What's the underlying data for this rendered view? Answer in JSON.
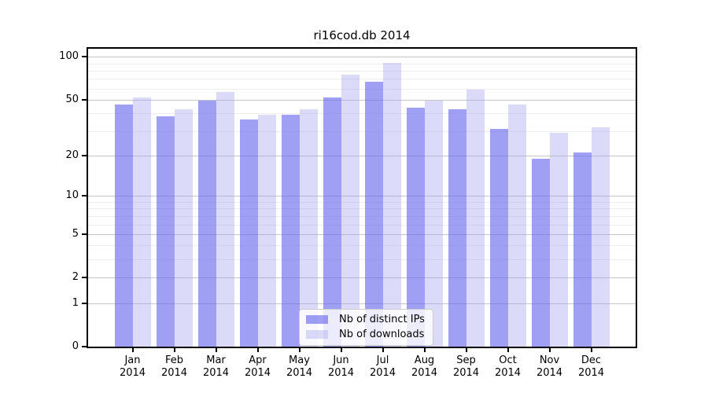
{
  "chart": {
    "title": "ri16cod.db 2014"
  },
  "chart_data": {
    "type": "bar",
    "title": "ri16cod.db 2014",
    "categories": [
      "Jan",
      "Feb",
      "Mar",
      "Apr",
      "May",
      "Jun",
      "Jul",
      "Aug",
      "Sep",
      "Oct",
      "Nov",
      "Dec"
    ],
    "category_year": "2014",
    "series": [
      {
        "name": "Nb of distinct IPs",
        "color": "#6464EB9E",
        "values": [
          46,
          38,
          49,
          36,
          39,
          52,
          67,
          44,
          43,
          31,
          19,
          21
        ]
      },
      {
        "name": "Nb of downloads",
        "color": "#A0A0F061",
        "values": [
          52,
          43,
          57,
          39,
          43,
          75,
          91,
          49,
          59,
          46,
          29,
          32
        ]
      }
    ],
    "y_axis": {
      "scale": "log10(1+x)",
      "tick_values": [
        0,
        1,
        2,
        5,
        10,
        20,
        50,
        100
      ],
      "tick_labels": [
        "0",
        "1",
        "2",
        "5",
        "10",
        "20",
        "50",
        "100"
      ],
      "minor_tick_values": [
        3,
        4,
        6,
        7,
        8,
        9,
        30,
        40,
        60,
        70,
        80,
        90
      ],
      "ylim": [
        0,
        115
      ]
    },
    "xlabel": "",
    "ylabel": "",
    "grid": true,
    "legend_position": "lower center inside plot",
    "colors": {
      "major_grid": "#c6c6c6",
      "minor_grid": "#ededed",
      "axis": "#000000",
      "background": "#ffffff"
    }
  }
}
